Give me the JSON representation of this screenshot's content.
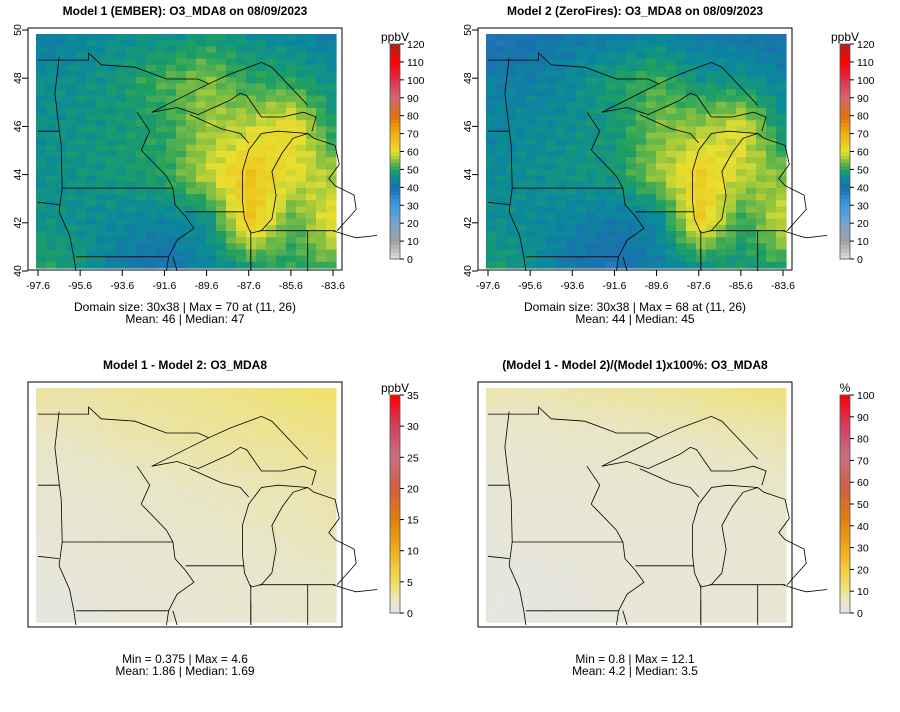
{
  "chart_data": [
    {
      "type": "heatmap",
      "title": "Model 1 (EMBER): O3_MDA8 on 08/09/2023",
      "unit": "ppbV",
      "colormap": "ozone",
      "clim": [
        0,
        120
      ],
      "colorbar_ticks": [
        "0",
        "10",
        "20",
        "30",
        "40",
        "50",
        "60",
        "70",
        "80",
        "90",
        "100",
        "110",
        "120"
      ],
      "show_axes": true,
      "x_ticks": [
        "-97.6",
        "-95.6",
        "-93.6",
        "-91.6",
        "-89.6",
        "-87.6",
        "-85.6",
        "-83.6"
      ],
      "y_ticks": [
        "40",
        "42",
        "44",
        "46",
        "48",
        "50"
      ],
      "xlim": [
        -97.6,
        -83.6
      ],
      "ylim": [
        40,
        50
      ],
      "grid_size": [
        30,
        38
      ],
      "coarse_field_rows_north_to_south": [
        [
          42,
          44,
          46,
          46,
          48,
          46,
          44,
          42
        ],
        [
          46,
          46,
          48,
          52,
          55,
          50,
          50,
          46
        ],
        [
          46,
          47,
          48,
          50,
          56,
          58,
          62,
          48
        ],
        [
          46,
          47,
          48,
          50,
          58,
          66,
          60,
          56
        ],
        [
          47,
          46,
          45,
          44,
          46,
          66,
          52,
          62
        ],
        [
          50,
          48,
          42,
          40,
          44,
          48,
          50,
          52
        ]
      ],
      "stats_line1": "Domain size: 30x38 | Max = 70 at (11, 26)",
      "stats_line2": "Mean: 46 |  Median: 47"
    },
    {
      "type": "heatmap",
      "title": "Model 2 (ZeroFires): O3_MDA8 on 08/09/2023",
      "unit": "ppbV",
      "colormap": "ozone",
      "clim": [
        0,
        120
      ],
      "colorbar_ticks": [
        "0",
        "10",
        "20",
        "30",
        "40",
        "50",
        "60",
        "70",
        "80",
        "90",
        "100",
        "110",
        "120"
      ],
      "show_axes": true,
      "x_ticks": [
        "-97.6",
        "-95.6",
        "-93.6",
        "-91.6",
        "-89.6",
        "-87.6",
        "-85.6",
        "-83.6"
      ],
      "y_ticks": [
        "40",
        "42",
        "44",
        "46",
        "48",
        "50"
      ],
      "xlim": [
        -97.6,
        -83.6
      ],
      "ylim": [
        40,
        50
      ],
      "grid_size": [
        30,
        38
      ],
      "coarse_field_rows_north_to_south": [
        [
          38,
          40,
          42,
          42,
          44,
          42,
          41,
          40
        ],
        [
          43,
          43,
          45,
          49,
          52,
          47,
          47,
          44
        ],
        [
          44,
          45,
          46,
          48,
          54,
          56,
          60,
          46
        ],
        [
          45,
          46,
          47,
          48,
          56,
          64,
          58,
          54
        ],
        [
          46,
          45,
          44,
          42,
          44,
          64,
          50,
          60
        ],
        [
          49,
          47,
          41,
          39,
          43,
          46,
          48,
          50
        ]
      ],
      "stats_line1": "Domain size: 30x38 | Max = 68 at (11, 26)",
      "stats_line2": "Mean: 44 |  Median: 45"
    },
    {
      "type": "heatmap",
      "title": "Model 1 - Model 2: O3_MDA8",
      "unit": "ppbV",
      "colormap": "diff",
      "clim": [
        0,
        35
      ],
      "colorbar_ticks": [
        "0",
        "5",
        "10",
        "15",
        "20",
        "25",
        "30",
        "35"
      ],
      "show_axes": false,
      "xlim": [
        -97.6,
        -83.6
      ],
      "ylim": [
        40,
        50
      ],
      "grid_size": [
        30,
        38
      ],
      "coarse_field_rows_north_to_south": [
        [
          3.2,
          3.0,
          3.4,
          3.6,
          3.8,
          4.0,
          4.4,
          4.6
        ],
        [
          2.2,
          2.4,
          2.8,
          3.0,
          3.2,
          3.4,
          3.6,
          3.8
        ],
        [
          1.6,
          1.8,
          2.0,
          2.2,
          2.4,
          2.6,
          2.8,
          3.0
        ],
        [
          1.2,
          1.4,
          1.6,
          1.8,
          2.0,
          2.2,
          2.4,
          2.6
        ],
        [
          0.8,
          1.0,
          1.2,
          1.4,
          1.6,
          1.8,
          2.0,
          2.2
        ],
        [
          0.4,
          0.6,
          1.0,
          1.2,
          1.4,
          1.6,
          1.8,
          2.0
        ]
      ],
      "stats_line1": "Min = 0.375 | Max = 4.6",
      "stats_line2": "Mean: 1.86 |  Median: 1.69"
    },
    {
      "type": "heatmap",
      "title": "(Model 1 - Model 2)/(Model 1)x100%: O3_MDA8",
      "unit": "%",
      "colormap": "diff",
      "clim": [
        0,
        100
      ],
      "colorbar_ticks": [
        "0",
        "10",
        "20",
        "30",
        "40",
        "50",
        "60",
        "70",
        "80",
        "90",
        "100"
      ],
      "show_axes": false,
      "xlim": [
        -97.6,
        -83.6
      ],
      "ylim": [
        40,
        50
      ],
      "grid_size": [
        30,
        38
      ],
      "coarse_field_rows_north_to_south": [
        [
          8.0,
          7.5,
          8.5,
          9.0,
          9.5,
          10.5,
          11.5,
          12.1
        ],
        [
          5.0,
          5.5,
          6.0,
          6.0,
          6.5,
          7.0,
          7.5,
          8.0
        ],
        [
          3.5,
          4.0,
          4.0,
          4.5,
          4.5,
          5.0,
          5.5,
          6.0
        ],
        [
          2.5,
          3.0,
          3.0,
          3.5,
          3.5,
          3.5,
          4.0,
          4.5
        ],
        [
          1.5,
          2.0,
          2.5,
          3.0,
          3.0,
          3.0,
          3.5,
          4.0
        ],
        [
          0.8,
          1.2,
          2.0,
          2.5,
          3.0,
          3.0,
          3.5,
          4.0
        ]
      ],
      "stats_line1": "Min = 0.8 | Max = 12.1",
      "stats_line2": "Mean: 4.2 |  Median: 3.5"
    }
  ],
  "colors": {
    "ozone_stops": [
      [
        0,
        "#e0e0e0"
      ],
      [
        10,
        "#a0a0a0"
      ],
      [
        20,
        "#78a2cc"
      ],
      [
        30,
        "#3a9ee0"
      ],
      [
        40,
        "#1c6fb0"
      ],
      [
        45,
        "#0a8a9a"
      ],
      [
        50,
        "#20a060"
      ],
      [
        55,
        "#88c040"
      ],
      [
        60,
        "#e8e030"
      ],
      [
        70,
        "#f0b010"
      ],
      [
        80,
        "#e07010"
      ],
      [
        90,
        "#d06a70"
      ],
      [
        100,
        "#e03050"
      ],
      [
        110,
        "#ff0000"
      ],
      [
        120,
        "#b02020"
      ]
    ],
    "diff_stops": [
      [
        0,
        "#e6e6e6"
      ],
      [
        0.06,
        "#e8e6c8"
      ],
      [
        0.14,
        "#f0e060"
      ],
      [
        0.28,
        "#f0b020"
      ],
      [
        0.43,
        "#e08010"
      ],
      [
        0.57,
        "#d06040"
      ],
      [
        0.72,
        "#c87080"
      ],
      [
        0.86,
        "#d04060"
      ],
      [
        1,
        "#ff0000"
      ]
    ]
  }
}
